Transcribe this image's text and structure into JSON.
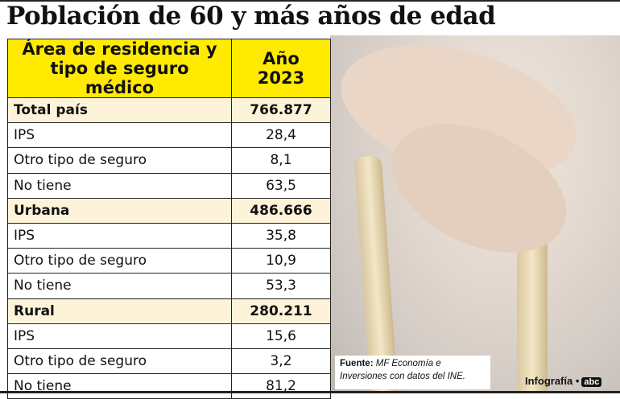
{
  "title": "Población de 60 y más años de edad",
  "table": {
    "headers": [
      "Área de residencia y tipo de seguro médico",
      "Año 2023"
    ],
    "header_line1": "Área de residencia y",
    "header_line2": "tipo de seguro médico",
    "year_line1": "Año",
    "year_line2": "2023",
    "rows": [
      {
        "label": "Total país",
        "value": "766.877",
        "section": true
      },
      {
        "label": "IPS",
        "value": "28,4"
      },
      {
        "label": "Otro tipo de seguro",
        "value": "8,1"
      },
      {
        "label": "No tiene",
        "value": "63,5"
      },
      {
        "label": "Urbana",
        "value": "486.666",
        "section": true
      },
      {
        "label": "IPS",
        "value": "35,8"
      },
      {
        "label": "Otro tipo de seguro",
        "value": "10,9"
      },
      {
        "label": "No tiene",
        "value": "53,3"
      },
      {
        "label": "Rural",
        "value": "280.211",
        "section": true
      },
      {
        "label": "IPS",
        "value": "15,6"
      },
      {
        "label": "Otro tipo de seguro",
        "value": "3,2"
      },
      {
        "label": "No tiene",
        "value": "81,2"
      }
    ]
  },
  "source": {
    "label": "Fuente:",
    "text": "MF Economía e Inversiones con datos del INE."
  },
  "credit": {
    "text": "Infografía •",
    "logo": "abc"
  },
  "colors": {
    "header": "#ffea00",
    "section": "#fdf3d9"
  }
}
